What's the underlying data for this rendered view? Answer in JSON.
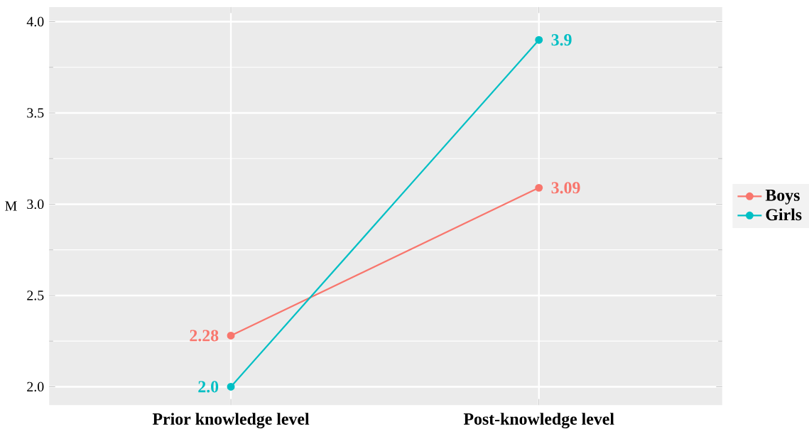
{
  "chart_data": {
    "type": "line",
    "ylabel": "M",
    "categories": [
      "Prior knowledge level",
      "Post-knowledge level"
    ],
    "series": [
      {
        "name": "Boys",
        "color": "#f8766d",
        "values": [
          2.28,
          3.09
        ],
        "value_labels": [
          "2.28",
          "3.09"
        ]
      },
      {
        "name": "Girls",
        "color": "#00bfc4",
        "values": [
          2.0,
          3.9
        ],
        "value_labels": [
          "2.0",
          "3.9"
        ]
      }
    ],
    "ylim": [
      1.9,
      4.08
    ],
    "yticks": [
      {
        "value": 2,
        "label": "2.0"
      },
      {
        "value": 2.5,
        "label": "2.5"
      },
      {
        "value": 3,
        "label": "3.0"
      },
      {
        "value": 3.5,
        "label": "3.5"
      },
      {
        "value": 4,
        "label": "4.0"
      }
    ],
    "grid": true,
    "legend": "right",
    "marker": "circle",
    "line_style": "solid"
  }
}
